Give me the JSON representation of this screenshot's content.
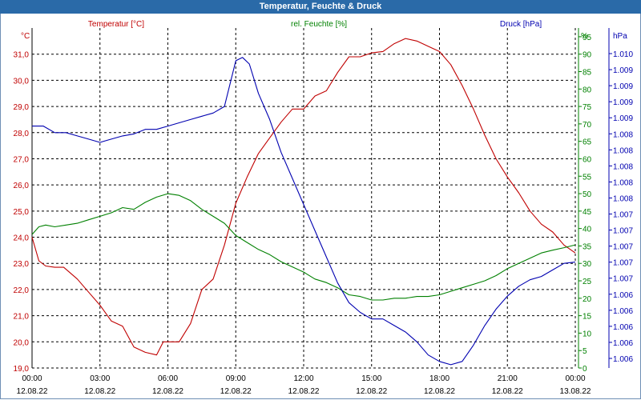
{
  "window": {
    "title": "Temperatur, Feuchte & Druck"
  },
  "colors": {
    "temperature": "#c00000",
    "humidity": "#008000",
    "pressure": "#0000b0",
    "titlebar": "#2a6aa8",
    "grid": "#000000"
  },
  "chart_data": {
    "type": "line",
    "title": "Temperatur, Feuchte & Druck",
    "grid": true,
    "x_ticks": [
      {
        "time": "00:00",
        "date": "12.08.22"
      },
      {
        "time": "03:00",
        "date": "12.08.22"
      },
      {
        "time": "06:00",
        "date": "12.08.22"
      },
      {
        "time": "09:00",
        "date": "12.08.22"
      },
      {
        "time": "12:00",
        "date": "12.08.22"
      },
      {
        "time": "15:00",
        "date": "12.08.22"
      },
      {
        "time": "18:00",
        "date": "12.08.22"
      },
      {
        "time": "21:00",
        "date": "12.08.22"
      },
      {
        "time": "00:00",
        "date": "13.08.22"
      }
    ],
    "xlim": [
      0,
      24
    ],
    "axes": {
      "temperature": {
        "label": "Temperatur [°C]",
        "unit": "°C",
        "ylim": [
          19,
          32
        ],
        "ticks": [
          "19,0",
          "20,0",
          "21,0",
          "22,0",
          "23,0",
          "24,0",
          "25,0",
          "26,0",
          "27,0",
          "28,0",
          "29,0",
          "30,0",
          "31,0"
        ]
      },
      "humidity": {
        "label": "rel. Feuchte [%]",
        "unit": "%",
        "ylim": [
          0,
          97.5
        ],
        "ticks": [
          "0",
          "5",
          "10",
          "15",
          "20",
          "25",
          "30",
          "35",
          "40",
          "45",
          "50",
          "55",
          "60",
          "65",
          "70",
          "75",
          "80",
          "85",
          "90",
          "95"
        ]
      },
      "pressure": {
        "label": "Druck [hPa]",
        "unit": "hPa",
        "ylim": [
          1005.4,
          1010.6
        ],
        "ticks": [
          "1.006",
          "1.006",
          "1.006",
          "1.006",
          "1.006",
          "1.007",
          "1.007",
          "1.007",
          "1.007",
          "1.007",
          "1.008",
          "1.008",
          "1.008",
          "1.008",
          "1.008",
          "1.009",
          "1.009",
          "1.009",
          "1.009",
          "1.010"
        ]
      }
    },
    "series": [
      {
        "name": "Temperatur [°C]",
        "axis": "temperature",
        "x": [
          0,
          0.3,
          0.6,
          1,
          1.4,
          2,
          2.5,
          3,
          3.5,
          4,
          4.5,
          5,
          5.5,
          5.8,
          6.1,
          6.5,
          7,
          7.5,
          8,
          8.5,
          9,
          9.5,
          10,
          10.5,
          11,
          11.5,
          12,
          12.5,
          13,
          13.5,
          14,
          14.5,
          15,
          15.5,
          16,
          16.5,
          17,
          17.5,
          18,
          18.5,
          19,
          19.5,
          20,
          20.5,
          21,
          21.5,
          22,
          22.5,
          23,
          23.5,
          24
        ],
        "values": [
          24.0,
          23.1,
          22.9,
          22.85,
          22.85,
          22.4,
          21.9,
          21.4,
          20.8,
          20.6,
          19.8,
          19.6,
          19.5,
          20.0,
          20.0,
          20.0,
          20.7,
          22.0,
          22.4,
          23.7,
          25.3,
          26.3,
          27.2,
          27.8,
          28.4,
          28.9,
          28.9,
          29.4,
          29.6,
          30.3,
          30.9,
          30.9,
          31.05,
          31.1,
          31.4,
          31.6,
          31.5,
          31.3,
          31.1,
          30.6,
          29.8,
          28.9,
          27.9,
          27.0,
          26.3,
          25.7,
          25.0,
          24.5,
          24.2,
          23.7,
          23.4
        ]
      },
      {
        "name": "rel. Feuchte [%]",
        "axis": "humidity",
        "x": [
          0,
          0.3,
          0.6,
          1,
          1.5,
          2,
          2.5,
          3,
          3.5,
          4,
          4.5,
          5,
          5.5,
          6,
          6.5,
          7,
          7.5,
          8,
          8.5,
          9,
          9.5,
          10,
          10.5,
          11,
          11.5,
          12,
          12.5,
          13,
          13.5,
          14,
          14.5,
          15,
          15.5,
          16,
          16.5,
          17,
          17.5,
          18,
          18.5,
          19,
          19.5,
          20,
          20.5,
          21,
          21.5,
          22,
          22.5,
          23,
          23.5,
          24
        ],
        "values": [
          38.3,
          40.5,
          41,
          40.5,
          41,
          41.5,
          42.5,
          43.5,
          44.5,
          46,
          45.5,
          47.5,
          49,
          50,
          49.5,
          48,
          45.5,
          43.5,
          41.5,
          38,
          36,
          34,
          32.5,
          30.5,
          29,
          27.5,
          25.5,
          24.5,
          23,
          21,
          20.5,
          19.5,
          19.5,
          20,
          20,
          20.5,
          20.5,
          21,
          22,
          23,
          24,
          25,
          26.5,
          28.5,
          30,
          31.5,
          33,
          33.8,
          34.5,
          35.3
        ]
      },
      {
        "name": "Druck [hPa]",
        "axis": "pressure",
        "x": [
          0,
          0.5,
          1,
          1.5,
          2,
          2.5,
          3,
          3.5,
          4,
          4.5,
          5,
          5.5,
          6,
          6.5,
          7,
          7.5,
          8,
          8.5,
          9,
          9.3,
          9.6,
          10,
          10.5,
          11,
          11.5,
          12,
          12.5,
          13,
          13.5,
          14,
          14.5,
          15,
          15.5,
          16,
          16.5,
          17,
          17.5,
          18,
          18.5,
          19,
          19.5,
          20,
          20.5,
          21,
          21.5,
          22,
          22.5,
          23,
          23.5,
          24
        ],
        "values": [
          1009.1,
          1009.1,
          1009.0,
          1009.0,
          1008.95,
          1008.9,
          1008.85,
          1008.9,
          1008.95,
          1008.98,
          1009.05,
          1009.05,
          1009.1,
          1009.15,
          1009.2,
          1009.25,
          1009.3,
          1009.4,
          1010.1,
          1010.15,
          1010.05,
          1009.6,
          1009.2,
          1008.7,
          1008.3,
          1007.9,
          1007.5,
          1007.1,
          1006.7,
          1006.4,
          1006.25,
          1006.15,
          1006.15,
          1006.05,
          1005.95,
          1005.8,
          1005.6,
          1005.5,
          1005.45,
          1005.5,
          1005.75,
          1006.05,
          1006.3,
          1006.5,
          1006.65,
          1006.75,
          1006.8,
          1006.9,
          1007.0,
          1007.02
        ]
      }
    ]
  }
}
